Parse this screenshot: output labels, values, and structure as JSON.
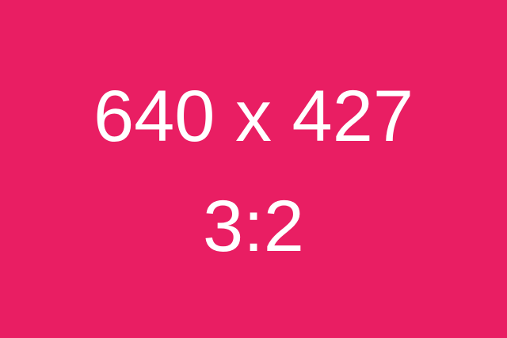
{
  "placeholder": {
    "dimensions_text": "640 x 427",
    "ratio_text": "3:2",
    "background_color": "#e91e63",
    "text_color": "#ffffff"
  }
}
